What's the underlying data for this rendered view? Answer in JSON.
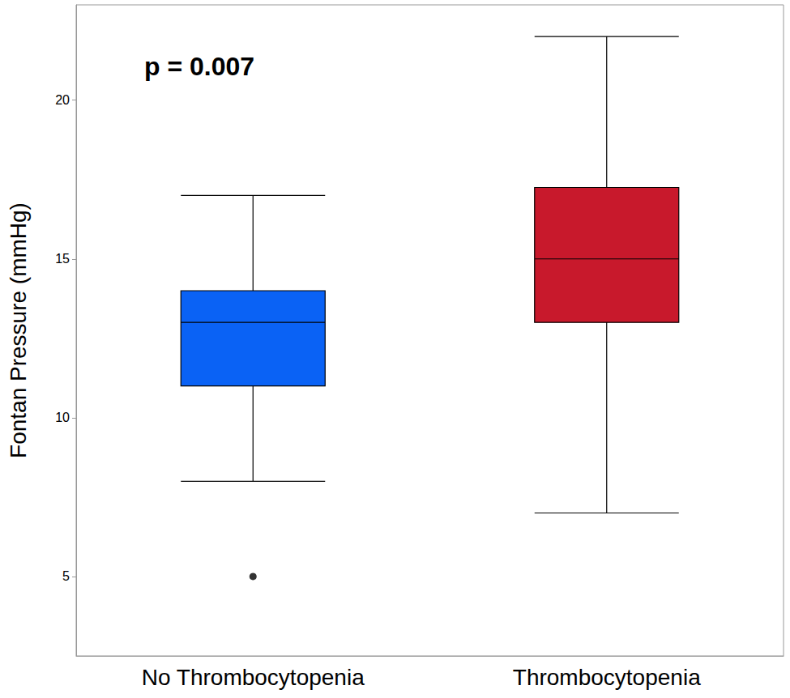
{
  "chart_data": {
    "type": "boxplot",
    "categories": [
      "No Thrombocytopenia",
      "Thrombocytopenia"
    ],
    "boxes": [
      {
        "min": 8,
        "q1": 11,
        "median": 13,
        "q3": 14,
        "max": 17,
        "outliers": [
          5
        ]
      },
      {
        "min": 7,
        "q1": 13,
        "median": 15,
        "q3": 17.25,
        "max": 22,
        "outliers": []
      }
    ],
    "colors": [
      "#0a62f5",
      "#c8192c"
    ],
    "ylabel": "Fontan Pressure (mmHg)",
    "annotation": "p = 0.007",
    "ylim": [
      2.5,
      23
    ],
    "yticks": [
      5,
      10,
      15,
      20
    ],
    "grid": false
  }
}
